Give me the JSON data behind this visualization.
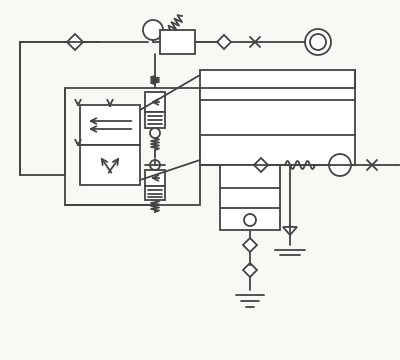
{
  "bg": "#f8f8f5",
  "lc": "#444444",
  "lw": 1.3
}
